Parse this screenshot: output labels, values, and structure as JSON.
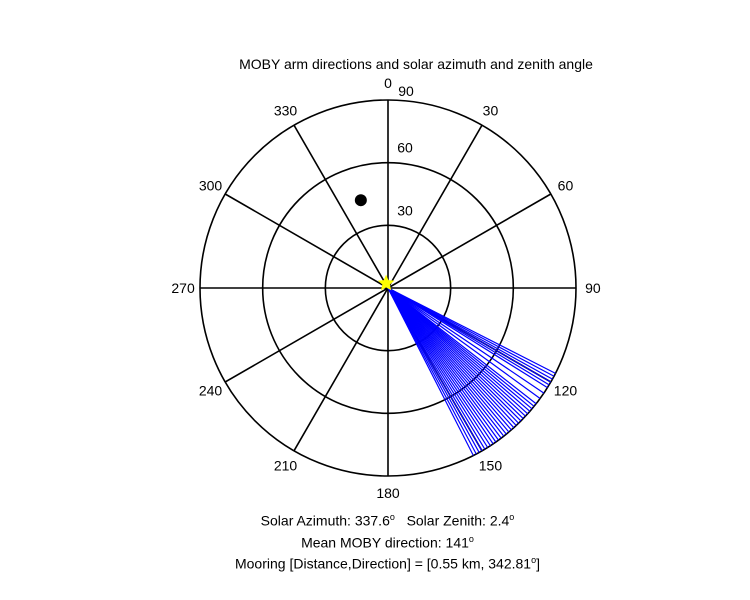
{
  "chart_data": {
    "type": "polar",
    "title": "MOBY arm directions and solar azimuth and zenith angle",
    "theta_direction": "clockwise",
    "theta_zero": "top",
    "angle_ticks": [
      0,
      30,
      60,
      90,
      120,
      150,
      180,
      210,
      240,
      270,
      300,
      330
    ],
    "angle_tick_labels": [
      "0",
      "30",
      "60",
      "90",
      "120",
      "150",
      "180",
      "210",
      "240",
      "270",
      "300",
      "330"
    ],
    "radial_axis": "zenith angle",
    "rmax": 90,
    "radial_ticks": [
      30,
      60,
      90
    ],
    "radial_tick_labels": [
      "30",
      "60",
      "90"
    ],
    "series": [
      {
        "marker": "line",
        "color": "#0000ff",
        "line_length_r": 90,
        "directions": [
          117,
          118,
          119,
          120,
          121,
          122,
          124,
          126,
          128,
          129,
          130,
          131,
          132,
          133,
          134,
          135,
          136,
          137,
          138,
          139,
          140,
          141,
          142,
          143,
          144,
          145,
          146,
          147,
          148,
          149,
          150,
          151,
          152,
          153
        ]
      },
      {
        "marker": "point",
        "color": "#000000",
        "theta": 342.81,
        "r": 44
      },
      {
        "marker": "star",
        "color": "#ffff00",
        "theta": 337.6,
        "r": 2.4
      }
    ],
    "caption": {
      "solar_azimuth_label": "Solar Azimuth:",
      "solar_azimuth_value": "337.6",
      "solar_zenith_label": "Solar Zenith:",
      "solar_zenith_value": "2.4",
      "mean_direction_label": "Mean MOBY direction:",
      "mean_direction_value": "141",
      "degree_mark": "o",
      "mooring_label": "Mooring [Distance,Direction] =",
      "mooring_value": "[0.55 km, 342.81",
      "mooring_close": "]"
    }
  }
}
